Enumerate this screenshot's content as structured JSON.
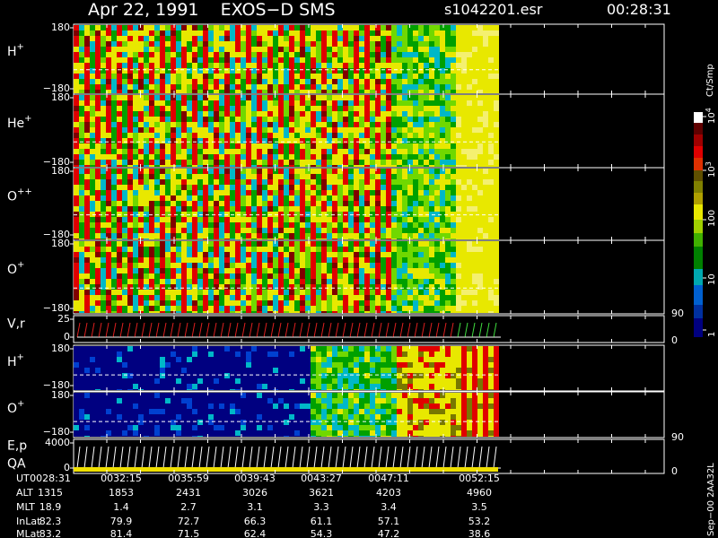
{
  "header": {
    "title": "Apr 22, 1991    EXOS−D SMS",
    "file": "s1042201.esr",
    "time": "00:28:31"
  },
  "panels": [
    {
      "label": "H",
      "superscript": "+",
      "ticks": [
        "180",
        "−180"
      ]
    },
    {
      "label": "He",
      "superscript": "+",
      "ticks": [
        "180",
        "−180"
      ]
    },
    {
      "label": "O",
      "superscript": "++",
      "ticks": [
        "180",
        "−180"
      ]
    },
    {
      "label": "O",
      "superscript": "+",
      "ticks": [
        "180",
        "−180"
      ]
    },
    {
      "label": "V,r",
      "ticks": [
        "25",
        "0"
      ],
      "right_ticks": [
        "90",
        "0"
      ]
    },
    {
      "label": "H",
      "superscript": "+",
      "ticks": [
        "180",
        "−180"
      ]
    },
    {
      "label": "O",
      "superscript": "+",
      "ticks": [
        "180",
        "−180"
      ]
    },
    {
      "label": "E,p",
      "label2": "QA",
      "ticks": [
        "4000",
        "0"
      ],
      "right_ticks": [
        "90",
        "0"
      ]
    }
  ],
  "colorbar": {
    "label": "Ct/Smp",
    "ticks": [
      {
        "base": "10",
        "exp": "4"
      },
      {
        "base": "10",
        "exp": "3"
      },
      {
        "base": "100"
      },
      {
        "base": "10"
      },
      {
        "base": "1"
      }
    ]
  },
  "footer": {
    "rows": [
      {
        "label": "UT",
        "values": [
          "0028:31",
          "0032:15",
          "0035:59",
          "0039:43",
          "0043:27",
          "0047:11",
          "0052:15"
        ]
      },
      {
        "label": "ALT",
        "values": [
          "1315",
          "1853",
          "2431",
          "3026",
          "3621",
          "4203",
          "4960"
        ]
      },
      {
        "label": "MLT",
        "values": [
          "18.9",
          "1.4",
          "2.7",
          "3.1",
          "3.3",
          "3.4",
          "3.5"
        ]
      },
      {
        "label": "InLat",
        "values": [
          "82.3",
          "79.9",
          "72.7",
          "66.3",
          "61.1",
          "57.1",
          "53.2"
        ]
      },
      {
        "label": "MLat",
        "values": [
          "83.2",
          "81.4",
          "71.5",
          "62.4",
          "54.3",
          "47.2",
          "38.6"
        ]
      }
    ]
  },
  "stamp": "Sep−00 2AA32L"
}
